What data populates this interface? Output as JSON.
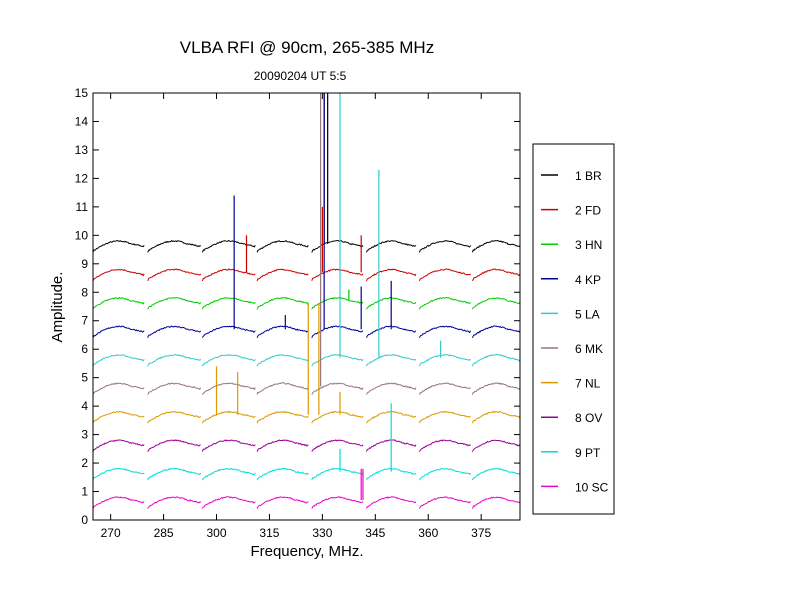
{
  "chart_data": {
    "type": "line",
    "title": "VLBA RFI @ 90cm, 265-385 MHz",
    "subtitle": "20090204   UT 5:5",
    "xlabel": "Frequency, MHz.",
    "ylabel": "Amplitude.",
    "xlim": [
      265,
      386
    ],
    "ylim": [
      0,
      15
    ],
    "xticks": [
      270,
      285,
      300,
      315,
      330,
      345,
      360,
      375
    ],
    "yticks": [
      0,
      1,
      2,
      3,
      4,
      5,
      6,
      7,
      8,
      9,
      10,
      11,
      12,
      13,
      14,
      15
    ],
    "grid": false,
    "legend_position": "right",
    "bands": [
      [
        265,
        279.5
      ],
      [
        280.5,
        295.5
      ],
      [
        296,
        311
      ],
      [
        311.5,
        326
      ],
      [
        327,
        341.5
      ],
      [
        342.5,
        356.5
      ],
      [
        357.5,
        372
      ],
      [
        372.5,
        386
      ]
    ],
    "series": [
      {
        "name": "1 BR",
        "color": "#000000",
        "baseline": 9.5,
        "spikes": [
          [
            330.5,
            15.0
          ],
          [
            331.5,
            15.0
          ]
        ]
      },
      {
        "name": "2 FD",
        "color": "#cc0000",
        "baseline": 8.5,
        "spikes": [
          [
            308.5,
            10.0
          ],
          [
            330,
            11.0
          ],
          [
            341,
            10.0
          ]
        ]
      },
      {
        "name": "3 HN",
        "color": "#00cc00",
        "baseline": 7.5,
        "spikes": [
          [
            337.5,
            8.1
          ],
          [
            360.5,
            7.7
          ]
        ]
      },
      {
        "name": "4 KP",
        "color": "#000099",
        "baseline": 6.5,
        "spikes": [
          [
            305,
            11.4
          ],
          [
            319.5,
            7.2
          ],
          [
            330.5,
            15.0
          ],
          [
            341,
            8.2
          ],
          [
            349.5,
            8.4
          ]
        ]
      },
      {
        "name": "5 LA",
        "color": "#33cccc",
        "baseline": 5.5,
        "spikes": [
          [
            335,
            15.0
          ],
          [
            346,
            12.3
          ],
          [
            363.5,
            6.3
          ]
        ]
      },
      {
        "name": "6 MK",
        "color": "#997777",
        "baseline": 4.5,
        "spikes": [
          [
            329.5,
            15.0
          ]
        ]
      },
      {
        "name": "7 NL",
        "color": "#dd9900",
        "baseline": 3.5,
        "spikes": [
          [
            300,
            5.4
          ],
          [
            306,
            5.2
          ],
          [
            326,
            7.6
          ],
          [
            329,
            7.6
          ],
          [
            335,
            4.5
          ]
        ]
      },
      {
        "name": "8 OV",
        "color": "#990099",
        "baseline": 2.5,
        "spikes": []
      },
      {
        "name": "9 PT",
        "color": "#00dddd",
        "baseline": 1.5,
        "spikes": [
          [
            335,
            2.5
          ],
          [
            349.5,
            4.1
          ]
        ]
      },
      {
        "name": "10 SC",
        "color": "#ee00cc",
        "baseline": 0.5,
        "spikes": [
          [
            341,
            1.8
          ],
          [
            341.5,
            1.8
          ]
        ]
      }
    ]
  }
}
